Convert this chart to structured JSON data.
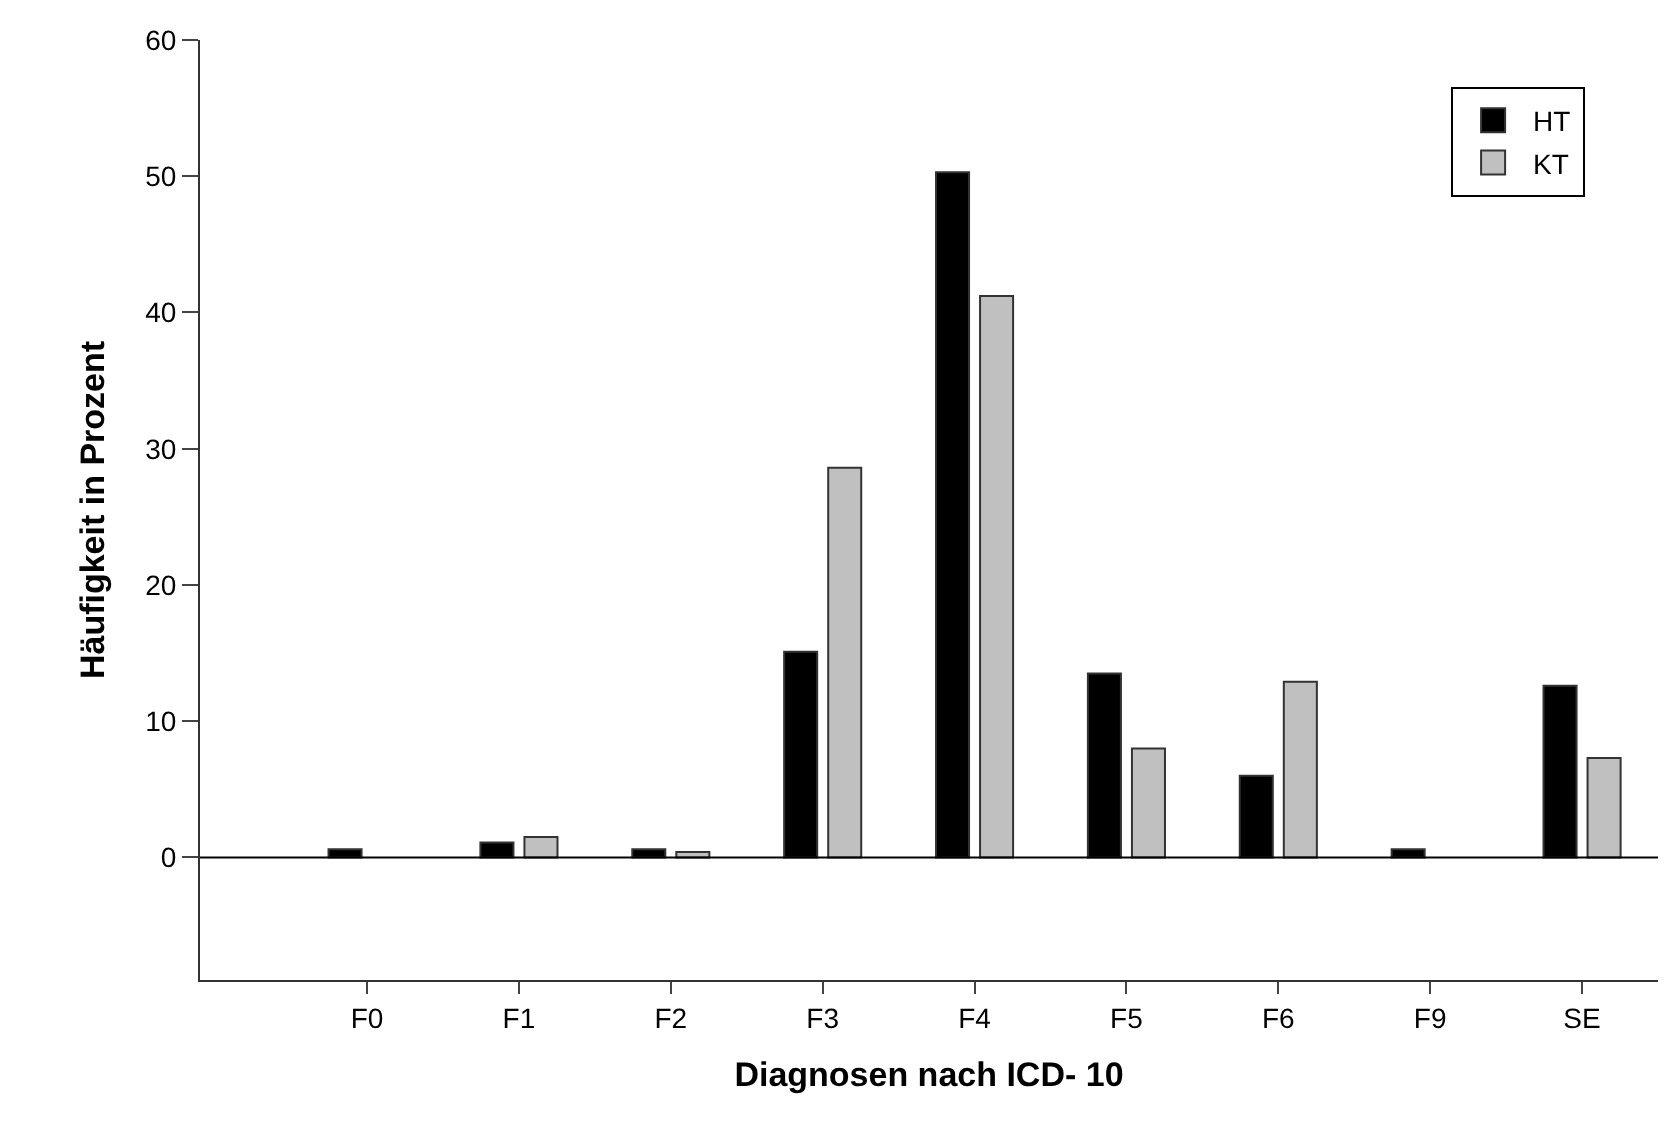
{
  "chart_data": {
    "type": "bar",
    "xlabel": "Diagnosen nach ICD- 10",
    "ylabel": "Häufigkeit in Prozent",
    "categories": [
      "F0",
      "F1",
      "F2",
      "F3",
      "F4",
      "F5",
      "F6",
      "F9",
      "SE"
    ],
    "series": [
      {
        "name": "HT",
        "color": "#000000",
        "values": [
          0.6,
          1.1,
          0.6,
          15.1,
          50.3,
          13.5,
          6.0,
          0.6,
          12.6
        ]
      },
      {
        "name": "KT",
        "color": "#c0c0c0",
        "values": [
          null,
          1.5,
          0.4,
          28.6,
          41.2,
          8.0,
          12.9,
          null,
          7.3
        ]
      }
    ],
    "ylim": [
      -9,
      60
    ],
    "yticks": [
      0,
      10,
      20,
      30,
      40,
      50,
      60
    ],
    "ref_lines": [
      {
        "axis": "y",
        "value": 0,
        "color": "#000000"
      }
    ],
    "legend": "top right"
  }
}
